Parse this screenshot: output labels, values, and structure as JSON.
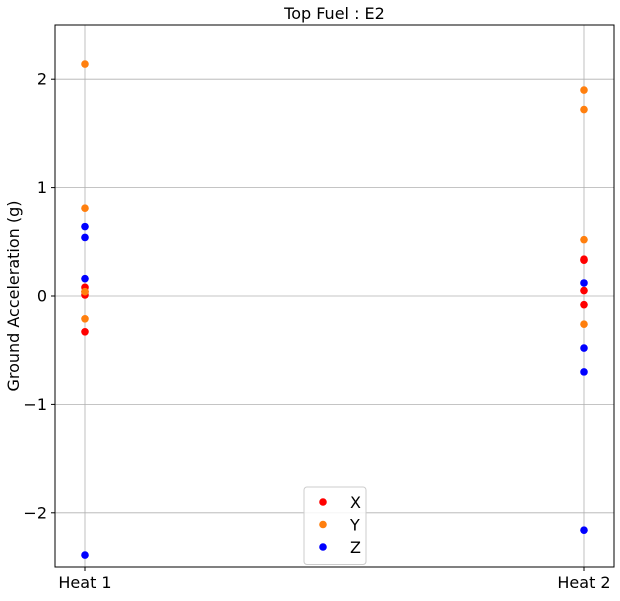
{
  "chart_data": {
    "type": "scatter",
    "title": "Top Fuel : E2",
    "xlabel": "",
    "ylabel": "Ground Acceleration (g)",
    "categories": [
      "Heat 1",
      "Heat 2"
    ],
    "ylim": [
      -2.5,
      2.5
    ],
    "yticks": [
      {
        "value": -2,
        "label": "−2"
      },
      {
        "value": -1,
        "label": "−1"
      },
      {
        "value": 0,
        "label": "0"
      },
      {
        "value": 1,
        "label": "1"
      },
      {
        "value": 2,
        "label": "2"
      }
    ],
    "grid": true,
    "legend_position": "bottom-center",
    "series": [
      {
        "name": "X",
        "color": "#ff0000",
        "points": [
          {
            "x": "Heat 1",
            "y": 0.08
          },
          {
            "x": "Heat 1",
            "y": 0.04
          },
          {
            "x": "Heat 1",
            "y": 0.01
          },
          {
            "x": "Heat 1",
            "y": -0.33
          },
          {
            "x": "Heat 2",
            "y": 0.34
          },
          {
            "x": "Heat 2",
            "y": 0.33
          },
          {
            "x": "Heat 2",
            "y": 0.05
          },
          {
            "x": "Heat 2",
            "y": -0.08
          }
        ]
      },
      {
        "name": "Y",
        "color": "#ff7f0e",
        "points": [
          {
            "x": "Heat 1",
            "y": 2.14
          },
          {
            "x": "Heat 1",
            "y": 0.81
          },
          {
            "x": "Heat 1",
            "y": 0.04
          },
          {
            "x": "Heat 1",
            "y": -0.21
          },
          {
            "x": "Heat 2",
            "y": 1.9
          },
          {
            "x": "Heat 2",
            "y": 1.72
          },
          {
            "x": "Heat 2",
            "y": 0.52
          },
          {
            "x": "Heat 2",
            "y": -0.26
          }
        ]
      },
      {
        "name": "Z",
        "color": "#0000ff",
        "points": [
          {
            "x": "Heat 1",
            "y": 0.64
          },
          {
            "x": "Heat 1",
            "y": 0.54
          },
          {
            "x": "Heat 1",
            "y": 0.16
          },
          {
            "x": "Heat 1",
            "y": -2.39
          },
          {
            "x": "Heat 2",
            "y": 0.12
          },
          {
            "x": "Heat 2",
            "y": -0.48
          },
          {
            "x": "Heat 2",
            "y": -0.7
          },
          {
            "x": "Heat 2",
            "y": -2.16
          }
        ]
      }
    ]
  }
}
